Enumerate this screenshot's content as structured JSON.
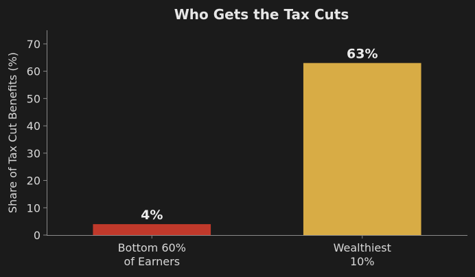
{
  "chart_data": {
    "type": "bar",
    "title": "Who Gets the Tax Cuts",
    "xlabel": "",
    "ylabel": "Share of Tax Cut Benefits (%)",
    "categories": [
      [
        "Bottom 60%",
        "of Earners"
      ],
      [
        "Wealthiest",
        "10%"
      ]
    ],
    "values": [
      4,
      63
    ],
    "data_labels": [
      "4%",
      "63%"
    ],
    "colors": [
      "#c0392b",
      "#d8ac45"
    ],
    "ylim": [
      0,
      75
    ],
    "yticks": [
      0,
      10,
      20,
      30,
      40,
      50,
      60,
      70
    ],
    "grid": false,
    "background": "#1b1b1b"
  }
}
